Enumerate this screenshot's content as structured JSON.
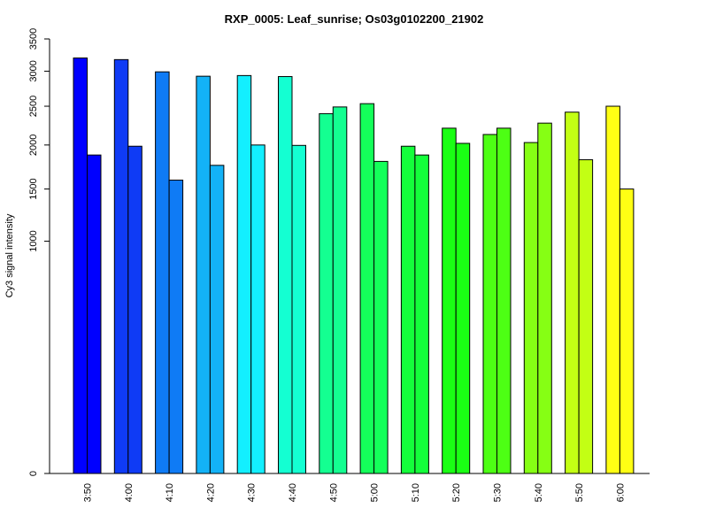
{
  "chart_data": {
    "type": "bar",
    "title": "RXP_0005: Leaf_sunrise; Os03g0102200_21902",
    "xlabel": "",
    "ylabel": "Cy3 signal intensity",
    "y_scale": "sqrt",
    "ylim": [
      0,
      3500
    ],
    "yticks": [
      0,
      1000,
      1500,
      2000,
      2500,
      3000,
      3500
    ],
    "grid": false,
    "categories": [
      "3:50",
      "4:00",
      "4:10",
      "4:20",
      "4:30",
      "4:40",
      "4:50",
      "5:00",
      "5:10",
      "5:20",
      "5:30",
      "5:40",
      "5:50",
      "6:00"
    ],
    "colors": [
      "#0000FF",
      "#0F3BF5",
      "#0F7BF5",
      "#13B2F7",
      "#13EFFF",
      "#14FFD2",
      "#14FF91",
      "#14FF5A",
      "#14FF3B",
      "#1AFF14",
      "#4DFF14",
      "#86FF14",
      "#C3FF14",
      "#FFFF14"
    ],
    "series": [
      {
        "values": [
          3200,
          3175,
          2990,
          2925,
          2935,
          2920,
          2400,
          2535,
          1985,
          2210,
          2130,
          2030,
          2420,
          2500
        ]
      },
      {
        "values": [
          1880,
          1985,
          1595,
          1760,
          2000,
          1995,
          2490,
          1805,
          1880,
          2020,
          2210,
          2275,
          1825,
          1500
        ]
      }
    ]
  }
}
